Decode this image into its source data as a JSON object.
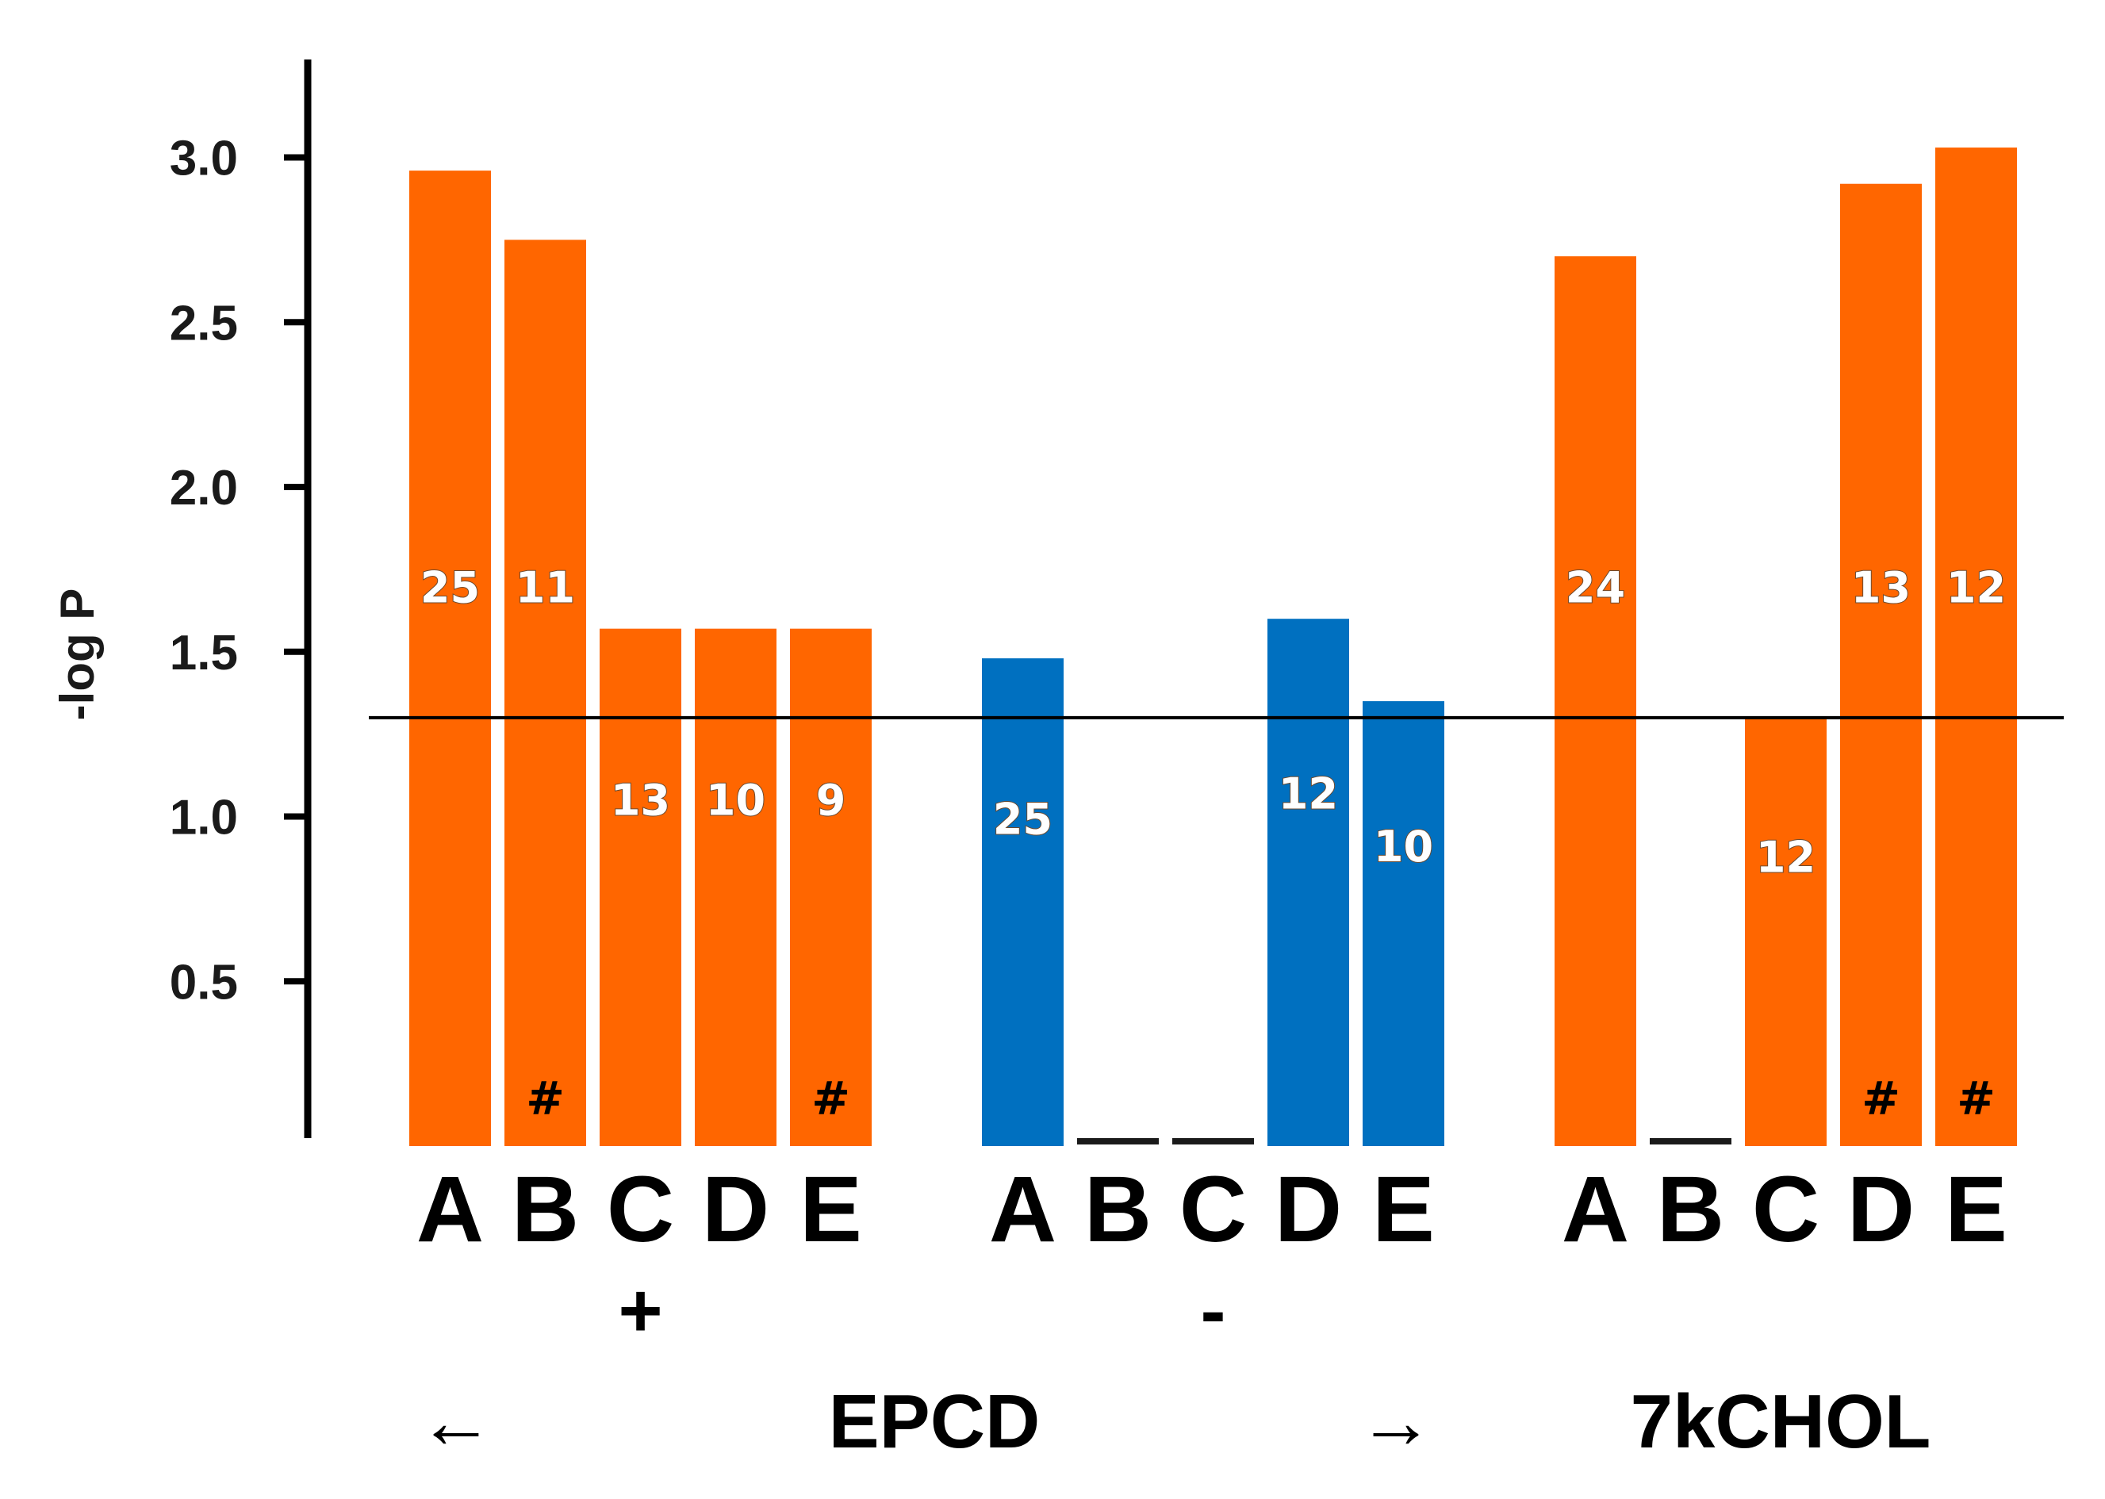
{
  "chart_data": {
    "type": "bar",
    "ylabel": "-log P",
    "ylim": [
      0,
      3.3
    ],
    "yticks": [
      "0.5",
      "1.0",
      "1.5",
      "2.0",
      "2.5",
      "3.0"
    ],
    "reference_line": 1.3,
    "colors": {
      "orange": "#ff6600",
      "blue": "#0070c0"
    },
    "groups": [
      {
        "sign": "+",
        "color": "orange",
        "bars": [
          {
            "category": "A",
            "value": 2.96,
            "n": "25",
            "hash": ""
          },
          {
            "category": "B",
            "value": 2.75,
            "n": "11",
            "hash": "#"
          },
          {
            "category": "C",
            "value": 1.57,
            "n": "13",
            "hash": ""
          },
          {
            "category": "D",
            "value": 1.57,
            "n": "10",
            "hash": ""
          },
          {
            "category": "E",
            "value": 1.57,
            "n": "9",
            "hash": "#"
          }
        ]
      },
      {
        "sign": "-",
        "color": "blue",
        "bars": [
          {
            "category": "A",
            "value": 1.48,
            "n": "25",
            "hash": ""
          },
          {
            "category": "B",
            "value": 0,
            "n": "",
            "hash": ""
          },
          {
            "category": "C",
            "value": 0,
            "n": "",
            "hash": ""
          },
          {
            "category": "D",
            "value": 1.6,
            "n": "12",
            "hash": ""
          },
          {
            "category": "E",
            "value": 1.35,
            "n": "10",
            "hash": ""
          }
        ]
      },
      {
        "sign": "",
        "color": "orange",
        "bars": [
          {
            "category": "A",
            "value": 2.7,
            "n": "24",
            "hash": ""
          },
          {
            "category": "B",
            "value": 0,
            "n": "",
            "hash": ""
          },
          {
            "category": "C",
            "value": 1.3,
            "n": "12",
            "hash": ""
          },
          {
            "category": "D",
            "value": 2.92,
            "n": "13",
            "hash": "#"
          },
          {
            "category": "E",
            "value": 3.03,
            "n": "12",
            "hash": "#"
          }
        ]
      }
    ],
    "bottom_labels": {
      "left_arrow": "←",
      "epcd": "EPCD",
      "right_arrow": "→",
      "kchol": "7kCHOL"
    }
  }
}
